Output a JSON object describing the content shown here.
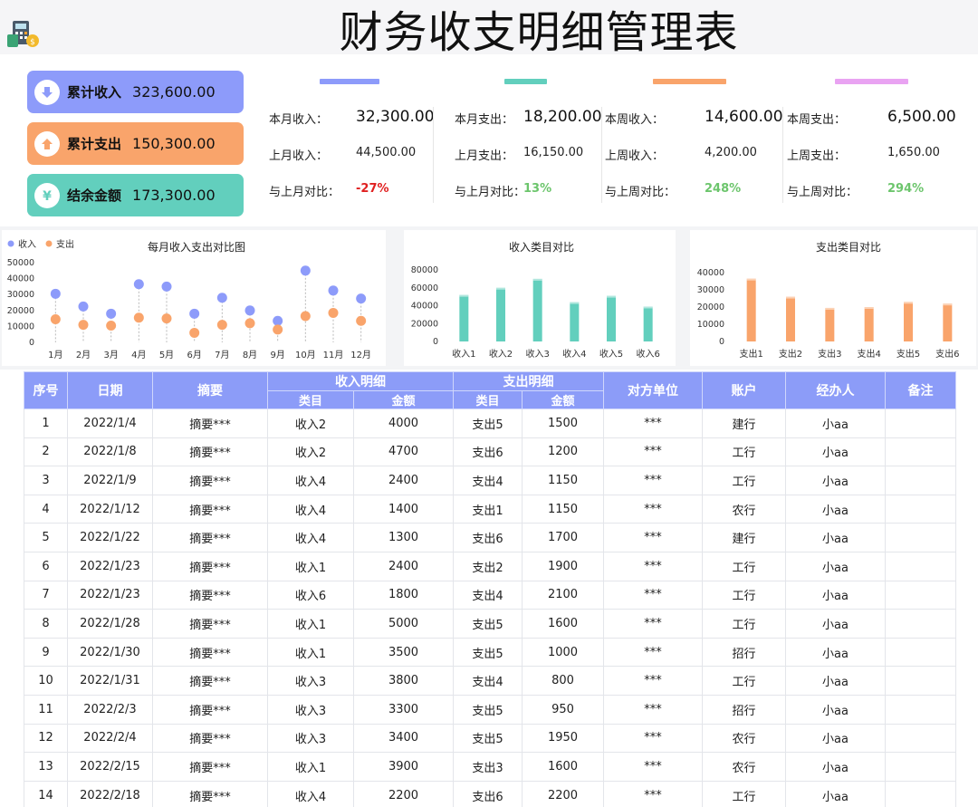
{
  "title": "财务收支明细管理表",
  "summary": [
    {
      "label": "累计收入",
      "value": "323,600.00",
      "icon": "down-arrow-icon",
      "color": "#8d9bfa"
    },
    {
      "label": "累计支出",
      "value": "150,300.00",
      "icon": "up-arrow-icon",
      "color": "#f9a46b"
    },
    {
      "label": "结余金额",
      "value": "173,300.00",
      "icon": "yen-icon",
      "color": "#62cfbd"
    }
  ],
  "kpis": [
    {
      "color": "#8d9bfa",
      "cur_label": "本月收入：",
      "cur_value": "32,300.00",
      "prev_label": "上月收入：",
      "prev_value": "44,500.00",
      "cmp_label": "与上月对比：",
      "cmp_value": "-27%",
      "cmp_color": "#e02020"
    },
    {
      "color": "#62cfbd",
      "cur_label": "本月支出：",
      "cur_value": "18,200.00",
      "prev_label": "上月支出：",
      "prev_value": "16,150.00",
      "cmp_label": "与上月对比：",
      "cmp_value": "13%",
      "cmp_color": "#6cc56c"
    },
    {
      "color": "#f9a46b",
      "cur_label": "本周收入：",
      "cur_value": "14,600.00",
      "prev_label": "上周收入：",
      "prev_value": "4,200.00",
      "cmp_label": "与上周对比：",
      "cmp_value": "248%",
      "cmp_color": "#6cc56c"
    },
    {
      "color": "#e9a3f2",
      "cur_label": "本周支出：",
      "cur_value": "6,500.00",
      "prev_label": "上周支出：",
      "prev_value": "1,650.00",
      "cmp_label": "与上周对比：",
      "cmp_value": "294%",
      "cmp_color": "#6cc56c"
    }
  ],
  "chart_data": [
    {
      "type": "scatter",
      "title": "每月收入支出对比图",
      "categories": [
        "1月",
        "2月",
        "3月",
        "4月",
        "5月",
        "6月",
        "7月",
        "8月",
        "9月",
        "10月",
        "11月",
        "12月"
      ],
      "series": [
        {
          "name": "收入",
          "color": "#8d9bfa",
          "values": [
            30500,
            22500,
            18000,
            36500,
            35000,
            18000,
            28000,
            20000,
            13500,
            45000,
            32500,
            27500
          ]
        },
        {
          "name": "支出",
          "color": "#f9a46b",
          "values": [
            14500,
            11000,
            10500,
            15500,
            15000,
            6000,
            11000,
            12000,
            8000,
            16500,
            18500,
            13500
          ]
        }
      ],
      "ylim": [
        0,
        50000
      ],
      "yticks": [
        "50000",
        "40000",
        "30000",
        "20000",
        "10000",
        "0"
      ],
      "legend": "top-left"
    },
    {
      "type": "bar",
      "title": "收入类目对比",
      "categories": [
        "收入1",
        "收入2",
        "收入3",
        "收入4",
        "收入5",
        "收入6"
      ],
      "values": [
        52000,
        60000,
        70000,
        44000,
        51000,
        39000
      ],
      "color": "#62cfbd",
      "ylim": [
        0,
        80000
      ],
      "yticks": [
        "80000",
        "60000",
        "40000",
        "20000",
        "0"
      ]
    },
    {
      "type": "bar",
      "title": "支出类目对比",
      "categories": [
        "支出1",
        "支出2",
        "支出3",
        "支出4",
        "支出5",
        "支出6"
      ],
      "values": [
        36500,
        26000,
        19500,
        20000,
        23000,
        22000
      ],
      "color": "#f9a46b",
      "ylim": [
        0,
        40000
      ],
      "yticks": [
        "40000",
        "30000",
        "20000",
        "10000",
        "0"
      ]
    }
  ],
  "table": {
    "headers": {
      "seq": "序号",
      "date": "日期",
      "summary": "摘要",
      "income_group": "收入明细",
      "expense_group": "支出明细",
      "category": "类目",
      "amount": "金额",
      "party": "对方单位",
      "account": "账户",
      "handler": "经办人",
      "note": "备注"
    },
    "rows": [
      [
        "1",
        "2022/1/4",
        "摘要***",
        "收入2",
        "4000",
        "支出5",
        "1500",
        "***",
        "建行",
        "小aa",
        ""
      ],
      [
        "2",
        "2022/1/8",
        "摘要***",
        "收入2",
        "4700",
        "支出6",
        "1200",
        "***",
        "工行",
        "小aa",
        ""
      ],
      [
        "3",
        "2022/1/9",
        "摘要***",
        "收入4",
        "2400",
        "支出4",
        "1150",
        "***",
        "工行",
        "小aa",
        ""
      ],
      [
        "4",
        "2022/1/12",
        "摘要***",
        "收入4",
        "1400",
        "支出1",
        "1150",
        "***",
        "农行",
        "小aa",
        ""
      ],
      [
        "5",
        "2022/1/22",
        "摘要***",
        "收入4",
        "1300",
        "支出6",
        "1700",
        "***",
        "建行",
        "小aa",
        ""
      ],
      [
        "6",
        "2022/1/23",
        "摘要***",
        "收入1",
        "2400",
        "支出2",
        "1900",
        "***",
        "工行",
        "小aa",
        ""
      ],
      [
        "7",
        "2022/1/23",
        "摘要***",
        "收入6",
        "1800",
        "支出4",
        "2100",
        "***",
        "工行",
        "小aa",
        ""
      ],
      [
        "8",
        "2022/1/28",
        "摘要***",
        "收入1",
        "5000",
        "支出5",
        "1600",
        "***",
        "工行",
        "小aa",
        ""
      ],
      [
        "9",
        "2022/1/30",
        "摘要***",
        "收入1",
        "3500",
        "支出5",
        "1000",
        "***",
        "招行",
        "小aa",
        ""
      ],
      [
        "10",
        "2022/1/31",
        "摘要***",
        "收入3",
        "3800",
        "支出4",
        "800",
        "***",
        "工行",
        "小aa",
        ""
      ],
      [
        "11",
        "2022/2/3",
        "摘要***",
        "收入3",
        "3300",
        "支出5",
        "950",
        "***",
        "招行",
        "小aa",
        ""
      ],
      [
        "12",
        "2022/2/4",
        "摘要***",
        "收入3",
        "3400",
        "支出5",
        "1950",
        "***",
        "农行",
        "小aa",
        ""
      ],
      [
        "13",
        "2022/2/15",
        "摘要***",
        "收入1",
        "3900",
        "支出3",
        "1600",
        "***",
        "农行",
        "小aa",
        ""
      ],
      [
        "14",
        "2022/2/18",
        "摘要***",
        "收入4",
        "2200",
        "支出6",
        "2200",
        "***",
        "工行",
        "小aa",
        ""
      ]
    ]
  }
}
